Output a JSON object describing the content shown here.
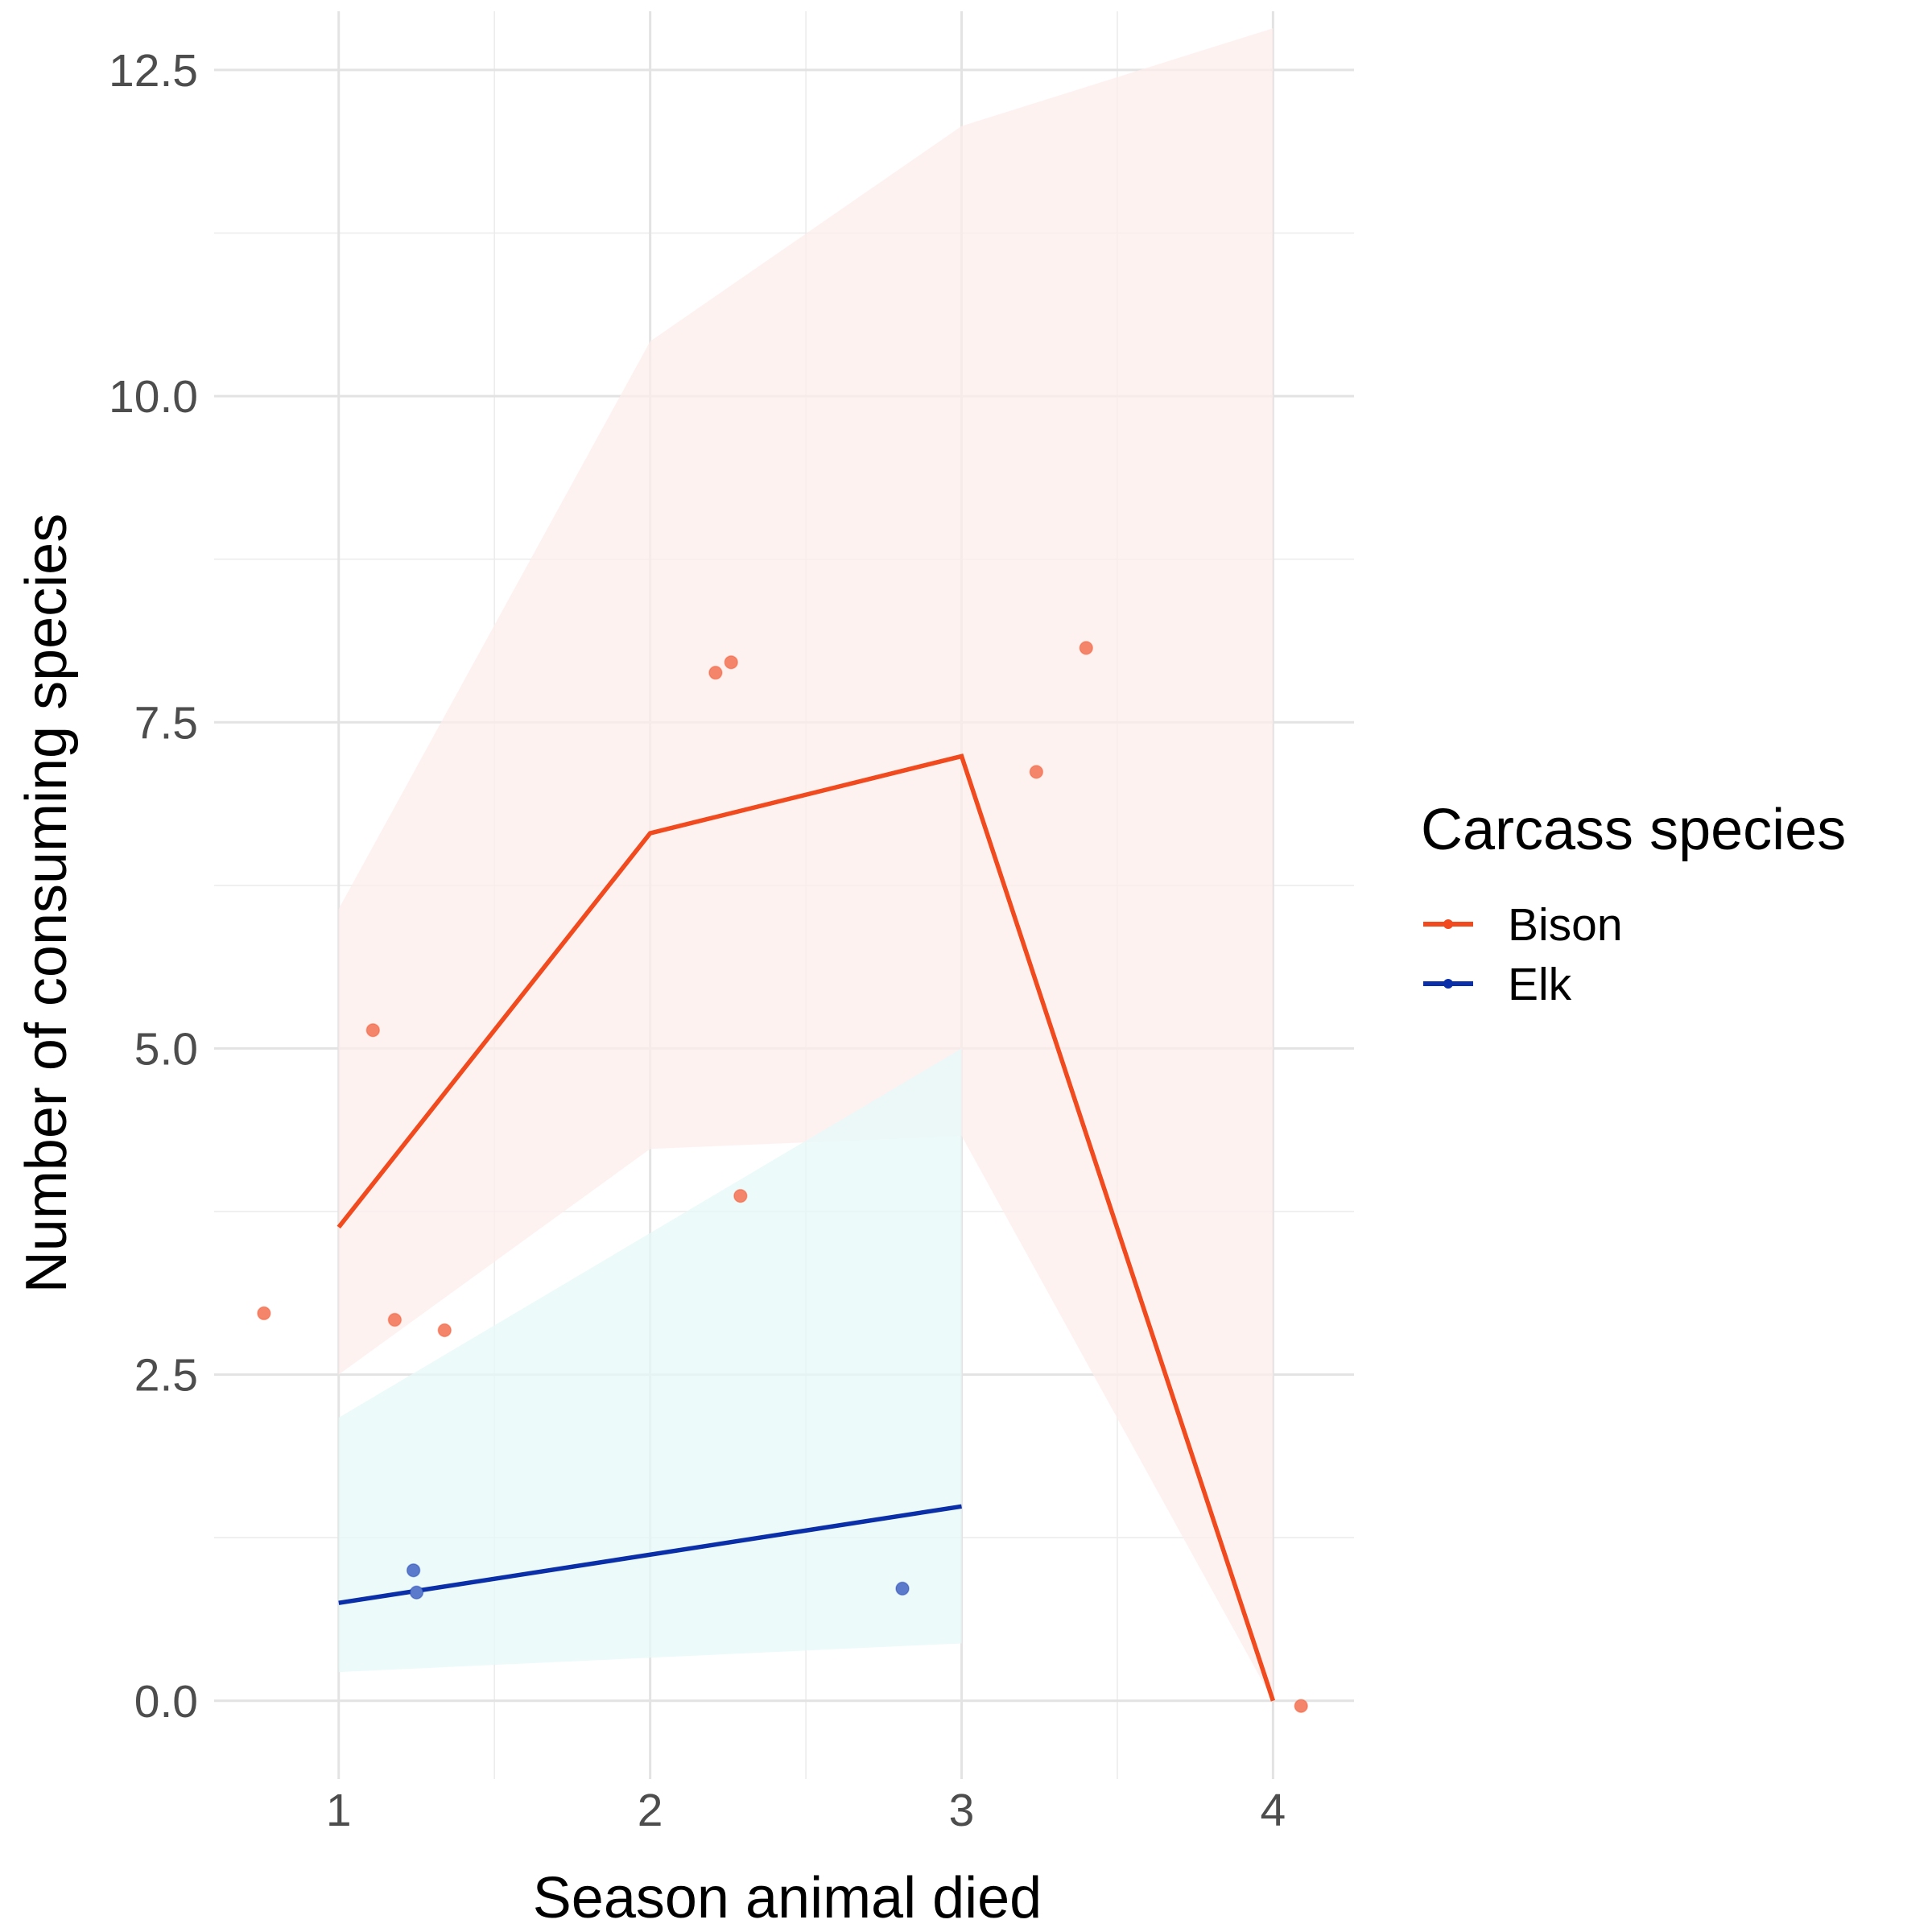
{
  "chart_data": {
    "type": "line",
    "xlabel": "Season animal died",
    "ylabel": "Number of consuming species",
    "xlim": [
      0.6,
      4.26
    ],
    "ylim": [
      -0.6,
      12.95
    ],
    "x_ticks": [
      1,
      2,
      3,
      4
    ],
    "y_ticks": [
      0.0,
      2.5,
      5.0,
      7.5,
      10.0,
      12.5
    ],
    "x_tick_labels": [
      "1",
      "2",
      "3",
      "4"
    ],
    "y_tick_labels": [
      "0.0",
      "2.5",
      "5.0",
      "7.5",
      "10.0",
      "12.5"
    ],
    "grid": true,
    "legend": {
      "title": "Carcass species",
      "position": "right",
      "entries": [
        "Bison",
        "Elk"
      ]
    },
    "series": [
      {
        "name": "Bison",
        "color": "#F04A1E",
        "point_color": "#F4846A",
        "ribbon_color": "#FDEEEC",
        "x": [
          1,
          2,
          3,
          4
        ],
        "y": [
          3.63,
          6.65,
          7.24,
          0.0
        ],
        "lower": [
          2.5,
          4.23,
          4.33,
          0.0
        ],
        "upper": [
          6.07,
          10.42,
          12.07,
          12.82
        ],
        "points": [
          [
            0.76,
            2.97
          ],
          [
            1.11,
            5.14
          ],
          [
            1.18,
            2.92
          ],
          [
            1.34,
            2.84
          ],
          [
            2.21,
            7.88
          ],
          [
            2.26,
            7.96
          ],
          [
            2.29,
            3.87
          ],
          [
            3.24,
            7.12
          ],
          [
            3.4,
            8.07
          ],
          [
            4.09,
            -0.04
          ]
        ]
      },
      {
        "name": "Elk",
        "color": "#0A2FA8",
        "point_color": "#5C7ACB",
        "ribbon_color": "#E6F8F8",
        "x": [
          1,
          3
        ],
        "y": [
          0.75,
          1.49
        ],
        "lower": [
          0.22,
          0.44
        ],
        "upper": [
          2.17,
          5.0
        ],
        "points": [
          [
            1.24,
            1.0
          ],
          [
            1.25,
            0.83
          ],
          [
            2.81,
            0.86
          ]
        ]
      }
    ]
  }
}
